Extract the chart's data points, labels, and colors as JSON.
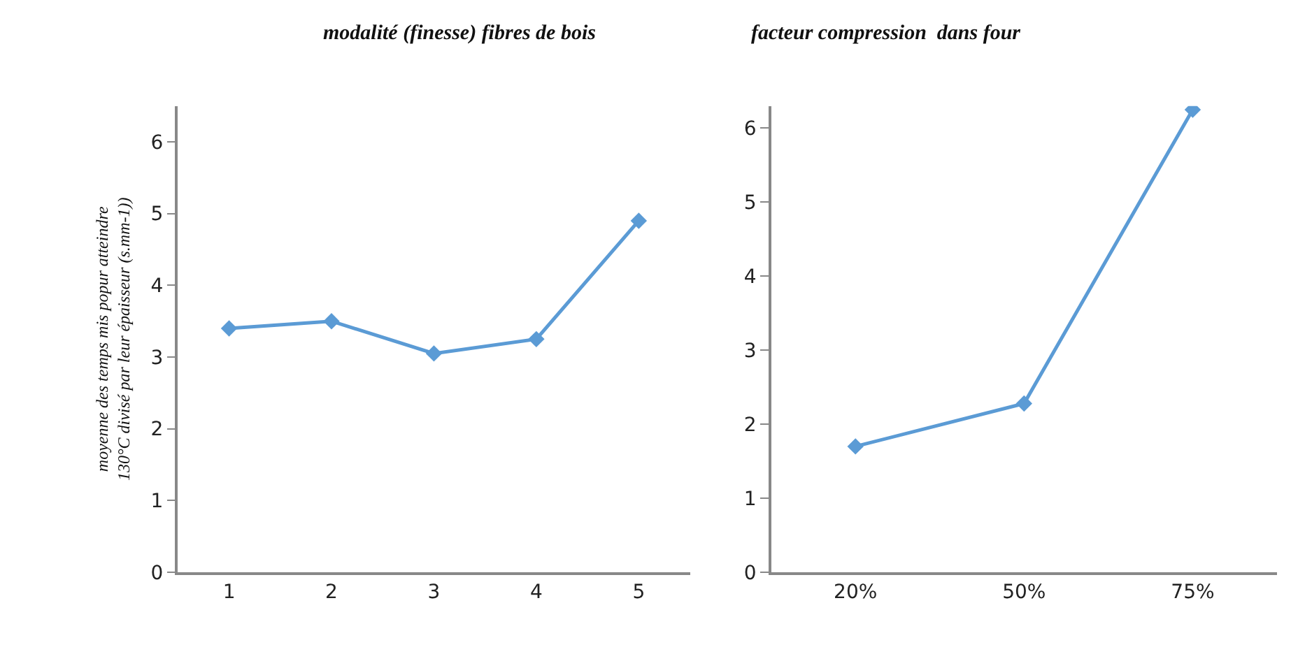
{
  "chart_data": [
    {
      "type": "line",
      "title": "modalité (finesse) fibres de bois",
      "ylabel": "moyenne des temps mis popur atteindre 130°C divisé par leur épaisseur (s.mm-1))",
      "categories": [
        "1",
        "2",
        "3",
        "4",
        "5"
      ],
      "series": [
        {
          "color": "#5b9bd5",
          "values": [
            3.4,
            3.5,
            3.05,
            3.25,
            4.9
          ]
        }
      ],
      "ylim": [
        0,
        6.5
      ],
      "yticks": [
        0,
        1,
        2,
        3,
        4,
        5,
        6
      ],
      "marker": "diamond",
      "grid": false
    },
    {
      "type": "line",
      "title": "facteur compression  dans four",
      "categories": [
        "20%",
        "50%",
        "75%"
      ],
      "series": [
        {
          "color": "#5b9bd5",
          "values": [
            1.7,
            2.28,
            6.25
          ]
        }
      ],
      "ylim": [
        0,
        6.3
      ],
      "yticks": [
        0,
        1,
        2,
        3,
        4,
        5,
        6
      ],
      "marker": "diamond",
      "grid": false
    }
  ]
}
